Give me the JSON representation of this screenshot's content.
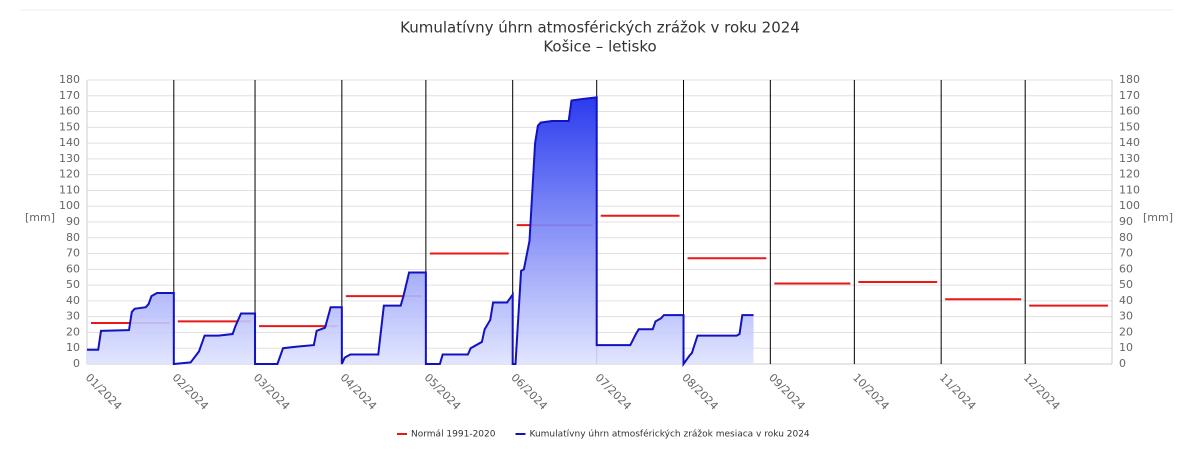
{
  "chart_data": {
    "type": "line",
    "title": "Kumulatívny úhrn atmosférických zrážok v roku 2024",
    "subtitle": "Košice – letisko",
    "y_label": "[mm]",
    "y2_label": "[mm]",
    "xlim": [
      0,
      366
    ],
    "xticks": [
      {
        "value": 0,
        "label": "01/2024"
      },
      {
        "value": 31,
        "label": "02/2024"
      },
      {
        "value": 60,
        "label": "03/2024"
      },
      {
        "value": 91,
        "label": "04/2024"
      },
      {
        "value": 121,
        "label": "05/2024"
      },
      {
        "value": 152,
        "label": "06/2024"
      },
      {
        "value": 182,
        "label": "07/2024"
      },
      {
        "value": 213,
        "label": "08/2024"
      },
      {
        "value": 244,
        "label": "09/2024"
      },
      {
        "value": 274,
        "label": "10/2024"
      },
      {
        "value": 305,
        "label": "11/2024"
      },
      {
        "value": 335,
        "label": "12/2024"
      }
    ],
    "ylim": [
      0,
      180
    ],
    "yticks": [
      0,
      10,
      20,
      30,
      40,
      50,
      60,
      70,
      80,
      90,
      100,
      110,
      120,
      130,
      140,
      150,
      160,
      170,
      180
    ],
    "y2lim": [
      0,
      180
    ],
    "y2ticks": [
      0,
      10,
      20,
      30,
      40,
      50,
      60,
      70,
      80,
      90,
      100,
      110,
      120,
      130,
      140,
      150,
      160,
      170,
      180
    ],
    "grid": true,
    "legend": "bottom",
    "series": [
      {
        "name": "Normál 1991-2020",
        "type": "step",
        "color": "#e81818",
        "values": [
          26,
          27,
          24,
          43,
          70,
          88,
          94,
          67,
          51,
          52,
          41,
          37
        ]
      },
      {
        "name": "Kumulatívny úhrn atmosférických zrážok mesiaca v roku 2024",
        "type": "area",
        "color": "#1212c0",
        "x": [
          0,
          4,
          5,
          15,
          16,
          17,
          21,
          22,
          23,
          25,
          31,
          31,
          37,
          40,
          42,
          47,
          52,
          53,
          55,
          60,
          60,
          68,
          70,
          75,
          81,
          82,
          85,
          87,
          91,
          91,
          92,
          94,
          104,
          106,
          112,
          113,
          115,
          121,
          121,
          126,
          127,
          136,
          137,
          141,
          142,
          144,
          145,
          150,
          152,
          152,
          153,
          155,
          156,
          158,
          160,
          161,
          162,
          166,
          172,
          173,
          177,
          182,
          182,
          194,
          196,
          197,
          202,
          203,
          205,
          206,
          213,
          213,
          215,
          216,
          218,
          232,
          233,
          234,
          238
        ],
        "values": [
          9,
          9,
          21,
          21.5,
          33,
          35,
          36,
          38,
          43,
          45,
          45,
          0,
          1,
          8,
          18,
          18,
          19,
          24,
          32,
          32,
          0,
          0,
          10,
          11,
          12,
          21,
          23,
          36,
          36,
          0,
          4,
          6,
          6,
          37,
          37,
          43,
          58,
          58,
          0,
          0,
          6,
          6,
          10,
          14,
          22,
          28,
          39,
          39,
          44,
          0,
          0,
          59,
          60,
          78,
          140,
          151,
          153,
          154,
          154,
          167,
          168,
          169,
          12,
          12,
          19,
          22,
          22,
          27,
          29,
          31,
          31,
          0,
          5,
          7,
          18,
          18,
          19,
          31,
          31
        ]
      }
    ]
  }
}
